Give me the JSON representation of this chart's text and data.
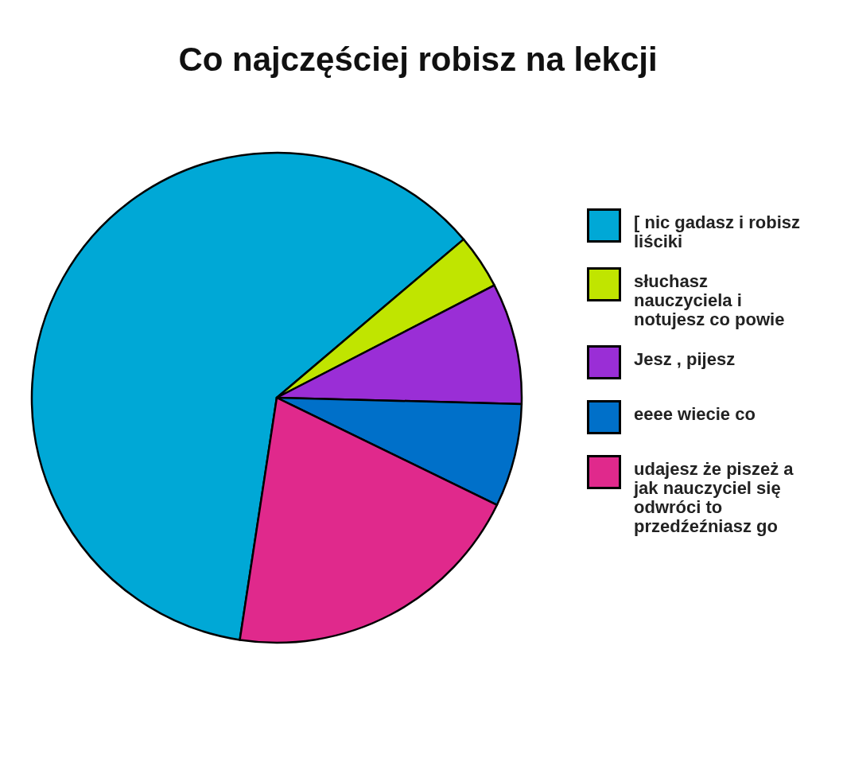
{
  "chart_data": {
    "type": "pie",
    "title": "Co najczęściej robisz na lekcji",
    "categories": [
      "[ nic  gadasz i robisz liściki",
      "słuchasz nauczyciela i notujesz co powie",
      "Jesz , pijesz",
      "eeee wiecie co",
      "udajesz że piszeż a jak nauczyciel się odwróci to przedźeźniasz go"
    ],
    "values": [
      61.4,
      3.6,
      8,
      6.8,
      20.2
    ],
    "colors": [
      "#00a8d6",
      "#c0e500",
      "#9a2ed6",
      "#0070c9",
      "#e0298c"
    ],
    "legend": "right"
  }
}
